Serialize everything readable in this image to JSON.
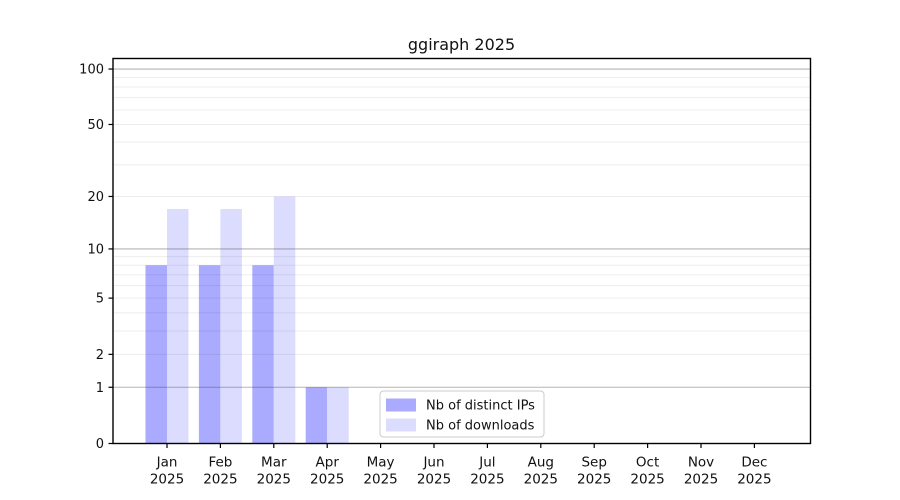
{
  "chart_data": {
    "type": "bar",
    "title": "ggiraph 2025",
    "xlabel": "",
    "ylabel": "",
    "yscale": "log1p",
    "ylim": [
      0,
      114
    ],
    "yticks": [
      0,
      1,
      2,
      5,
      10,
      20,
      50,
      100
    ],
    "categories": [
      "Jan",
      "Feb",
      "Mar",
      "Apr",
      "May",
      "Jun",
      "Jul",
      "Aug",
      "Sep",
      "Oct",
      "Nov",
      "Dec"
    ],
    "x_year_suffix": "2025",
    "series": [
      {
        "name": "Nb of distinct IPs",
        "color": "#aaaaff",
        "values": [
          8,
          8,
          8,
          1,
          0,
          0,
          0,
          0,
          0,
          0,
          0,
          0
        ]
      },
      {
        "name": "Nb of downloads",
        "color": "#dcdcff",
        "values": [
          17,
          17,
          20,
          1,
          0,
          0,
          0,
          0,
          0,
          0,
          0,
          0
        ]
      }
    ],
    "grid": {
      "on": true,
      "major_lines": [
        1,
        10,
        100
      ],
      "minor_lines": [
        2,
        3,
        4,
        5,
        6,
        7,
        8,
        9,
        20,
        30,
        40,
        50,
        60,
        70,
        80,
        90
      ],
      "major_color": "#b4b4b4",
      "minor_color": "#ececec"
    },
    "legend": {
      "position": "lower center inside",
      "border_color": "#cccccc",
      "background": "#ffffff",
      "entries": [
        "Nb of distinct IPs",
        "Nb of downloads"
      ]
    },
    "spine_color": "#000000",
    "text_color": "#111111"
  }
}
